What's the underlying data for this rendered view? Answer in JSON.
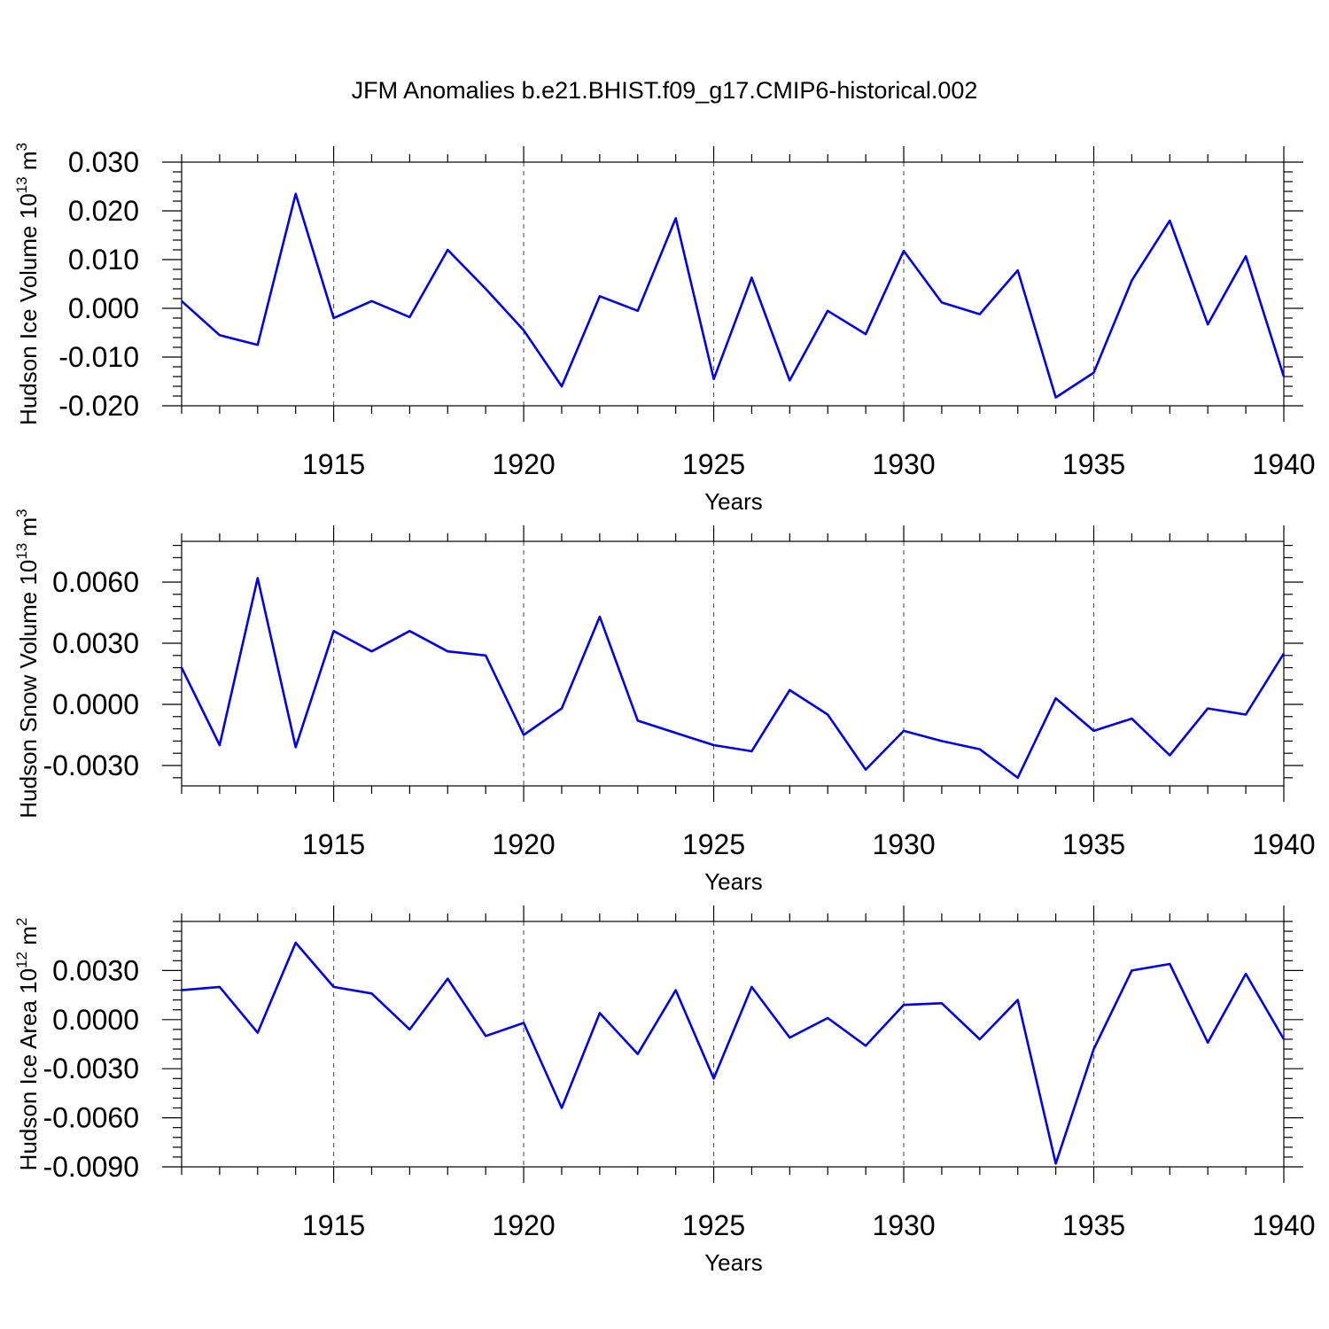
{
  "chart_data": {
    "type": "line",
    "title": "JFM Anomalies b.e21.BHIST.f09_g17.CMIP6-historical.002",
    "series_color": "#0000ee",
    "x": [
      1911,
      1912,
      1913,
      1914,
      1915,
      1916,
      1917,
      1918,
      1919,
      1920,
      1921,
      1922,
      1923,
      1924,
      1925,
      1926,
      1927,
      1928,
      1929,
      1930,
      1931,
      1932,
      1933,
      1934,
      1935,
      1936,
      1937,
      1938,
      1939,
      1940
    ],
    "xlim": [
      1911,
      1940
    ],
    "xticks": [
      1915,
      1920,
      1925,
      1930,
      1935,
      1940
    ],
    "xtick_labels": [
      "1915",
      "1920",
      "1925",
      "1930",
      "1935",
      "1940"
    ],
    "panels": [
      {
        "name": "ice-volume",
        "xlabel": "Years",
        "ylabel_main": "Hudson Ice Volume 10",
        "ylabel_exp": "13",
        "ylabel_unit": " m",
        "ylabel_unit_exp": "3",
        "ylim": [
          -0.02,
          0.03
        ],
        "yticks": [
          -0.02,
          -0.01,
          0.0,
          0.01,
          0.02,
          0.03
        ],
        "ytick_labels": [
          "-0.020",
          "-0.010",
          "0.000",
          "0.010",
          "0.020",
          "0.030"
        ],
        "minor_step": 0.002,
        "values": [
          0.0015,
          -0.0055,
          -0.0075,
          0.0235,
          -0.002,
          0.0015,
          -0.0018,
          0.012,
          0.004,
          -0.0045,
          -0.016,
          0.0025,
          -0.0005,
          0.0185,
          -0.0145,
          0.0063,
          -0.0148,
          -0.0005,
          -0.0053,
          0.0118,
          0.0012,
          -0.0012,
          0.0078,
          -0.0183,
          -0.0132,
          0.0057,
          0.018,
          -0.0033,
          0.0107,
          -0.014
        ]
      },
      {
        "name": "snow-volume",
        "xlabel": "Years",
        "ylabel_main": "Hudson Snow Volume 10",
        "ylabel_exp": "13",
        "ylabel_unit": " m",
        "ylabel_unit_exp": "3",
        "ylim": [
          -0.004,
          0.008
        ],
        "yticks": [
          -0.003,
          0.0,
          0.003,
          0.006
        ],
        "ytick_labels": [
          "-0.0030",
          "0.0000",
          "0.0030",
          "0.0060"
        ],
        "minor_step": 0.0006,
        "values": [
          0.0018,
          -0.002,
          0.0062,
          -0.0021,
          0.0036,
          0.0026,
          0.0036,
          0.0026,
          0.0024,
          -0.0015,
          -0.0002,
          0.0043,
          -0.0008,
          -0.0014,
          -0.002,
          -0.0023,
          0.0007,
          -0.0005,
          -0.0032,
          -0.0013,
          -0.0018,
          -0.0022,
          -0.0036,
          0.0003,
          -0.0013,
          -0.0007,
          -0.0025,
          -0.0002,
          -0.0005,
          0.0025
        ]
      },
      {
        "name": "ice-area",
        "xlabel": "Years",
        "ylabel_main": "Hudson Ice Area 10",
        "ylabel_exp": "12",
        "ylabel_unit": " m",
        "ylabel_unit_exp": "2",
        "ylim": [
          -0.009,
          0.006
        ],
        "yticks": [
          -0.009,
          -0.006,
          -0.003,
          0.0,
          0.003
        ],
        "ytick_labels": [
          "-0.0090",
          "-0.0060",
          "-0.0030",
          "0.0000",
          "0.0030"
        ],
        "minor_step": 0.0006,
        "values": [
          0.0018,
          0.002,
          -0.0008,
          0.0047,
          0.002,
          0.0016,
          -0.0006,
          0.0025,
          -0.001,
          -0.0002,
          -0.0054,
          0.0004,
          -0.0021,
          0.0018,
          -0.0036,
          0.002,
          -0.0011,
          0.0001,
          -0.0016,
          0.0009,
          0.001,
          -0.0012,
          0.0012,
          -0.0088,
          -0.0018,
          0.003,
          0.0034,
          -0.0014,
          0.0028,
          -0.0012
        ]
      }
    ]
  }
}
